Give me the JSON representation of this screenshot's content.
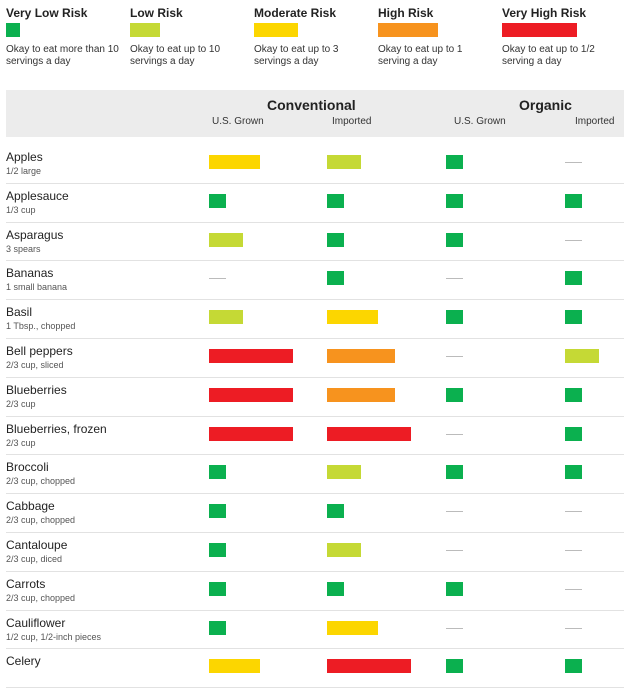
{
  "legend": [
    {
      "key": "vlow",
      "title": "Very Low Risk",
      "desc": "Okay to eat more than 10 servings a day",
      "color": "#0bb04f"
    },
    {
      "key": "low",
      "title": "Low Risk",
      "desc": "Okay to eat up to 10 servings a day",
      "color": "#c5d935"
    },
    {
      "key": "mod",
      "title": "Moderate Risk",
      "desc": "Okay to eat up to 3 servings a day",
      "color": "#fcd600"
    },
    {
      "key": "high",
      "title": "High Risk",
      "desc": "Okay to eat up to 1 serving a day",
      "color": "#f7931e"
    },
    {
      "key": "vhigh",
      "title": "Very High Risk",
      "desc": "Okay to eat up to 1/2 serving a day",
      "color": "#ed1c24"
    }
  ],
  "header": {
    "conventional": "Conventional",
    "organic": "Organic",
    "columns": [
      "U.S. Grown",
      "Imported",
      "U.S. Grown",
      "Imported"
    ]
  },
  "chart_data": {
    "type": "table",
    "row_labels": [
      "Apples",
      "Applesauce",
      "Asparagus",
      "Bananas",
      "Basil",
      "Bell peppers",
      "Blueberries",
      "Blueberries, frozen",
      "Broccoli",
      "Cabbage",
      "Cantaloupe",
      "Carrots",
      "Cauliflower",
      "Celery"
    ],
    "servings": [
      "1/2 large",
      "1/3 cup",
      "3 spears",
      "1 small banana",
      "1 Tbsp., chopped",
      "2/3 cup, sliced",
      "2/3 cup",
      "2/3 cup",
      "2/3 cup, chopped",
      "2/3 cup, chopped",
      "2/3 cup, diced",
      "2/3 cup, chopped",
      "1/2 cup, 1/2-inch pieces",
      ""
    ],
    "column_labels": [
      "Conventional U.S. Grown",
      "Conventional Imported",
      "Organic U.S. Grown",
      "Organic Imported"
    ],
    "risk_levels": [
      "Very Low Risk",
      "Low Risk",
      "Moderate Risk",
      "High Risk",
      "Very High Risk"
    ],
    "values": [
      [
        "mod",
        "low",
        "vlow",
        "none"
      ],
      [
        "vlow",
        "vlow",
        "vlow",
        "vlow"
      ],
      [
        "low",
        "vlow",
        "vlow",
        "none"
      ],
      [
        "none",
        "vlow",
        "none",
        "vlow"
      ],
      [
        "low",
        "mod",
        "vlow",
        "vlow"
      ],
      [
        "vhigh",
        "high",
        "none",
        "low"
      ],
      [
        "vhigh",
        "high",
        "vlow",
        "vlow"
      ],
      [
        "vhigh",
        "vhigh",
        "none",
        "vlow"
      ],
      [
        "vlow",
        "low",
        "vlow",
        "vlow"
      ],
      [
        "vlow",
        "vlow",
        "none",
        "none"
      ],
      [
        "vlow",
        "low",
        "none",
        "none"
      ],
      [
        "vlow",
        "vlow",
        "vlow",
        "none"
      ],
      [
        "vlow",
        "mod",
        "none",
        "none"
      ],
      [
        "mod",
        "vhigh",
        "vlow",
        "vlow"
      ]
    ]
  }
}
